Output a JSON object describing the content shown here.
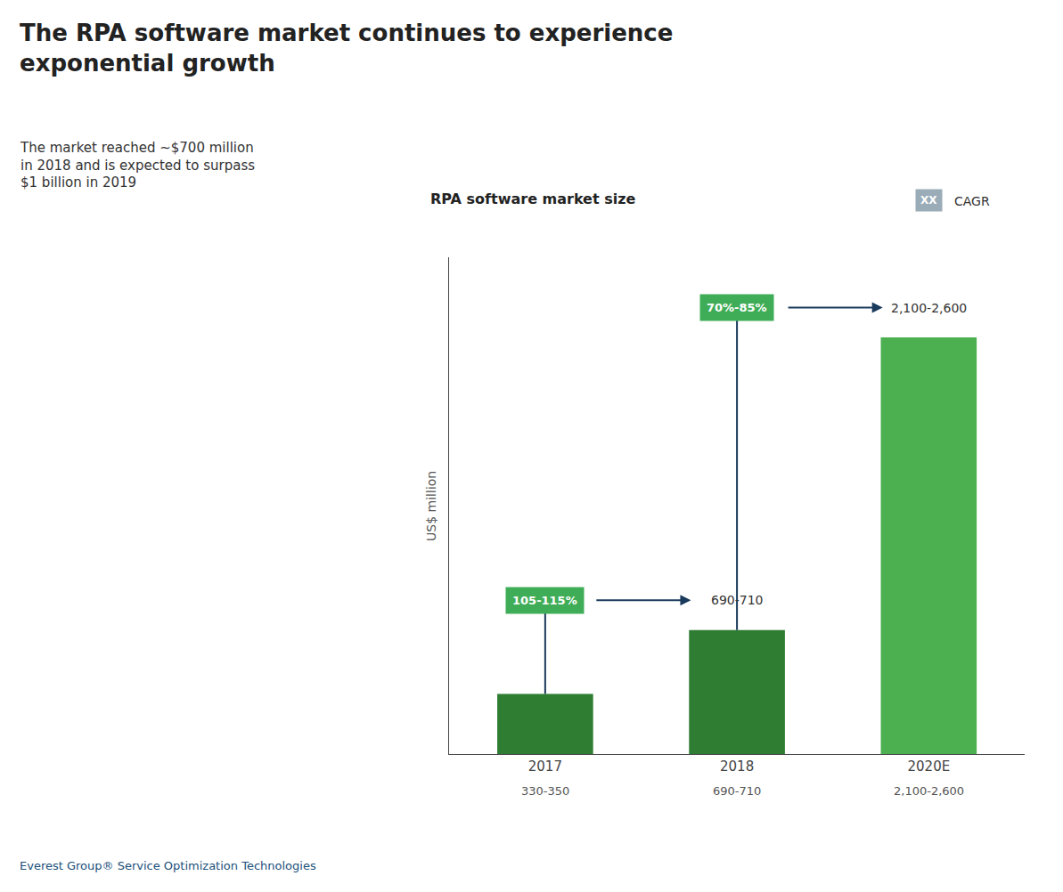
{
  "chart_data": {
    "type": "bar",
    "title": "The RPA software market continues to experience\nexponential growth",
    "subtitle": "The market reached ~$700 million\nin 2018 and is expected to surpass\n$1 billion in 2019",
    "chart_title": "RPA software market size",
    "y_label": "US$ million",
    "categories": [
      "2017",
      "2018",
      "2020E"
    ],
    "values": [
      340,
      700,
      2350
    ],
    "value_labels": [
      "330-350",
      "690-710",
      "2,100-2,600"
    ],
    "colors": [
      "#2e7d32",
      "#2e7d32",
      "#4caf50"
    ],
    "ylim": [
      0,
      2800
    ],
    "yticks": [],
    "tick_labels": "x",
    "grid": false,
    "annotations": [
      {
        "text": "105-115%",
        "target": "690-710",
        "color": "#3fad57"
      },
      {
        "text": "70%-85%",
        "target": "2,100-2,600",
        "color": "#3fad57"
      }
    ],
    "key": {
      "text": "XX",
      "label": "CAGR",
      "color": "#9aacb8"
    },
    "footer": "Everest Group® Service Optimization Technologies"
  }
}
